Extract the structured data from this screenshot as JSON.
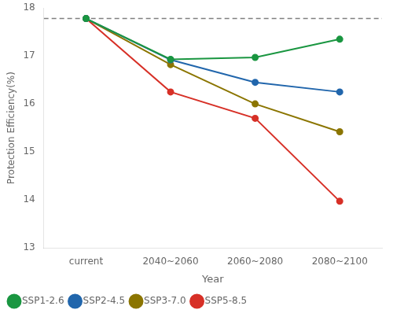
{
  "chart_data": {
    "type": "line",
    "categories": [
      "current",
      "2040~2060",
      "2060~2080",
      "2080~2100"
    ],
    "series": [
      {
        "name": "SSP1-2.6",
        "color": "#1a9641",
        "values": [
          17.78,
          16.93,
          16.97,
          17.35
        ]
      },
      {
        "name": "SSP2-4.5",
        "color": "#2166ac",
        "values": [
          17.78,
          16.92,
          16.45,
          16.25
        ]
      },
      {
        "name": "SSP3-7.0",
        "color": "#8B7500",
        "values": [
          17.78,
          16.82,
          16.0,
          15.42
        ]
      },
      {
        "name": "SSP5-8.5",
        "color": "#d73027",
        "values": [
          17.78,
          16.25,
          15.7,
          13.97
        ]
      }
    ],
    "reference_line": 17.78,
    "x_label": "Year",
    "y_label": "Protection Efficiency(%)",
    "ylim": [
      13,
      18
    ],
    "yticks": [
      13,
      14,
      15,
      16,
      17,
      18
    ],
    "grid": false,
    "legend": "lower left",
    "marker": "circle",
    "line_style": "solid"
  }
}
